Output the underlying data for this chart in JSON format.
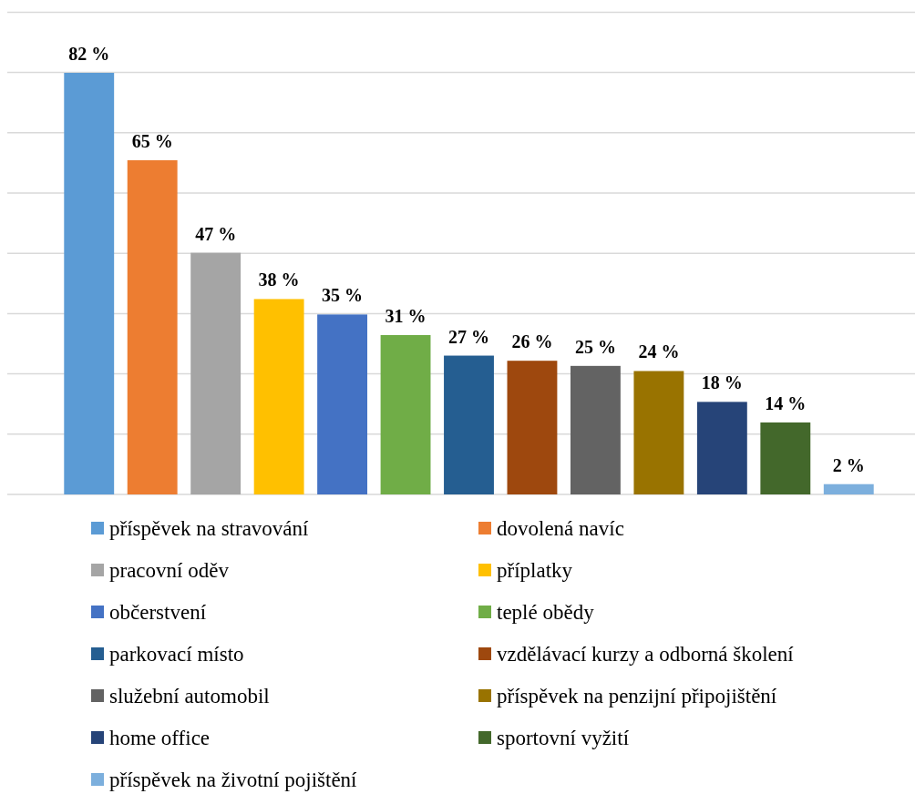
{
  "chart_data": {
    "type": "bar",
    "stacked": true,
    "categories": [
      null,
      null,
      null,
      null,
      null,
      null,
      null,
      null,
      null,
      null,
      null,
      null,
      null
    ],
    "series": [
      {
        "name": "příspěvek na stravování",
        "color": "#5b9bd5",
        "values": [
          82,
          null,
          null,
          null,
          null,
          null,
          null,
          null,
          null,
          null,
          null,
          null,
          null
        ],
        "value_labels": [
          "82 %",
          null,
          null,
          null,
          null,
          null,
          null,
          null,
          null,
          null,
          null,
          null,
          null
        ]
      },
      {
        "name": "dovolená navíc",
        "color": "#ed7d31",
        "values": [
          null,
          65,
          null,
          null,
          null,
          null,
          null,
          null,
          null,
          null,
          null,
          null,
          null
        ],
        "value_labels": [
          null,
          "65 %",
          null,
          null,
          null,
          null,
          null,
          null,
          null,
          null,
          null,
          null,
          null
        ]
      },
      {
        "name": "pracovní oděv",
        "color": "#a5a5a5",
        "values": [
          null,
          null,
          47,
          null,
          null,
          null,
          null,
          null,
          null,
          null,
          null,
          null,
          null
        ],
        "value_labels": [
          null,
          null,
          "47 %",
          null,
          null,
          null,
          null,
          null,
          null,
          null,
          null,
          null,
          null
        ]
      },
      {
        "name": "příplatky",
        "color": "#ffc000",
        "values": [
          null,
          null,
          null,
          38,
          null,
          null,
          null,
          null,
          null,
          null,
          null,
          null,
          null
        ],
        "value_labels": [
          null,
          null,
          null,
          "38 %",
          null,
          null,
          null,
          null,
          null,
          null,
          null,
          null,
          null
        ]
      },
      {
        "name": "občerstvení",
        "color": "#4472c4",
        "values": [
          null,
          null,
          null,
          null,
          35,
          null,
          null,
          null,
          null,
          null,
          null,
          null,
          null
        ],
        "value_labels": [
          null,
          null,
          null,
          null,
          "35 %",
          null,
          null,
          null,
          null,
          null,
          null,
          null,
          null
        ]
      },
      {
        "name": "teplé obědy",
        "color": "#70ad47",
        "values": [
          null,
          null,
          null,
          null,
          null,
          31,
          null,
          null,
          null,
          null,
          null,
          null,
          null
        ],
        "value_labels": [
          null,
          null,
          null,
          null,
          null,
          "31 %",
          null,
          null,
          null,
          null,
          null,
          null,
          null
        ]
      },
      {
        "name": "parkovací místo",
        "color": "#255e91",
        "values": [
          null,
          null,
          null,
          null,
          null,
          null,
          27,
          null,
          null,
          null,
          null,
          null,
          null
        ],
        "value_labels": [
          null,
          null,
          null,
          null,
          null,
          null,
          "27 %",
          null,
          null,
          null,
          null,
          null,
          null
        ]
      },
      {
        "name": "vzdělávací kurzy a odborná školení",
        "color": "#9e480e",
        "values": [
          null,
          null,
          null,
          null,
          null,
          null,
          null,
          26,
          null,
          null,
          null,
          null,
          null
        ],
        "value_labels": [
          null,
          null,
          null,
          null,
          null,
          null,
          null,
          "26 %",
          null,
          null,
          null,
          null,
          null
        ]
      },
      {
        "name": "služební automobil",
        "color": "#636363",
        "values": [
          null,
          null,
          null,
          null,
          null,
          null,
          null,
          null,
          25,
          null,
          null,
          null,
          null
        ],
        "value_labels": [
          null,
          null,
          null,
          null,
          null,
          null,
          null,
          null,
          "25 %",
          null,
          null,
          null,
          null
        ]
      },
      {
        "name": "příspěvek na penzijní připojištění",
        "color": "#997300",
        "values": [
          null,
          null,
          null,
          null,
          null,
          null,
          null,
          null,
          null,
          24,
          null,
          null,
          null
        ],
        "value_labels": [
          null,
          null,
          null,
          null,
          null,
          null,
          null,
          null,
          null,
          "24 %",
          null,
          null,
          null
        ]
      },
      {
        "name": "home office",
        "color": "#264478",
        "values": [
          null,
          null,
          null,
          null,
          null,
          null,
          null,
          null,
          null,
          null,
          18,
          null,
          null
        ],
        "value_labels": [
          null,
          null,
          null,
          null,
          null,
          null,
          null,
          null,
          null,
          null,
          "18 %",
          null,
          null
        ]
      },
      {
        "name": "sportovní vyžití",
        "color": "#43682b",
        "values": [
          null,
          null,
          null,
          null,
          null,
          null,
          null,
          null,
          null,
          null,
          null,
          14,
          null
        ],
        "value_labels": [
          null,
          null,
          null,
          null,
          null,
          null,
          null,
          null,
          null,
          null,
          null,
          "14 %",
          null
        ]
      },
      {
        "name": "příspěvek na životní pojištění",
        "color": "#7cafdd",
        "values": [
          null,
          null,
          null,
          null,
          null,
          null,
          null,
          null,
          null,
          null,
          null,
          null,
          2
        ],
        "value_labels": [
          null,
          null,
          null,
          null,
          null,
          null,
          null,
          null,
          null,
          null,
          null,
          null,
          "2 %"
        ]
      }
    ],
    "legend": "bottom"
  }
}
